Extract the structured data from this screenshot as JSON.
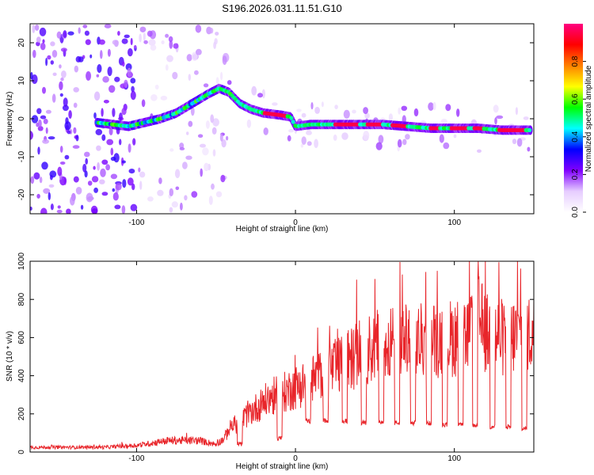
{
  "chart_data": [
    {
      "type": "heatmap",
      "title": "S196.2026.031.11.51.G10",
      "xlabel": "Height of straight line (km)",
      "ylabel": "Frequency (Hz)",
      "xlim": [
        -167,
        150
      ],
      "ylim": [
        -25,
        25
      ],
      "x_ticks": [
        -100,
        0,
        100
      ],
      "y_ticks": [
        -20,
        -10,
        0,
        10,
        20
      ],
      "colorbar": {
        "label": "Normalized spectral amplitude",
        "range": [
          0,
          1
        ],
        "ticks": [
          "0.0",
          "0.2",
          "0.4",
          "0.6",
          "0.8"
        ],
        "colors": [
          "#ffffff",
          "#e6ccff",
          "#8000ff",
          "#0000ff",
          "#00ffff",
          "#00ff00",
          "#ffff00",
          "#ff8000",
          "#ff0000",
          "#ff0080"
        ]
      },
      "ridge": {
        "x": [
          -125,
          -115,
          -105,
          -95,
          -85,
          -75,
          -65,
          -55,
          -48,
          -42,
          -35,
          -28,
          -20,
          -10,
          -3,
          0,
          10,
          25,
          40,
          55,
          70,
          85,
          100,
          115,
          130,
          148
        ],
        "y": [
          -1,
          -1.5,
          -2,
          -1,
          0,
          1.5,
          4,
          6.5,
          8,
          7,
          4,
          2.5,
          1.5,
          1,
          0.5,
          -2,
          -1.5,
          -1.5,
          -1.5,
          -1.5,
          -2,
          -2.5,
          -2.5,
          -2.5,
          -3,
          -3
        ],
        "peak_amplitude_regions_x": [
          [
            -20,
            -5
          ],
          [
            25,
            40
          ],
          [
            45,
            55
          ],
          [
            60,
            70
          ],
          [
            85,
            90
          ],
          [
            98,
            108
          ],
          [
            112,
            118
          ],
          [
            128,
            145
          ]
        ]
      }
    },
    {
      "type": "line",
      "xlabel": "Height of straight line (km)",
      "ylabel": "SNR (10 * v/v)",
      "xlim": [
        -167,
        150
      ],
      "ylim": [
        0,
        1000
      ],
      "x_ticks": [
        -100,
        0,
        100
      ],
      "y_ticks": [
        0,
        200,
        400,
        600,
        800,
        1000
      ],
      "series": [
        {
          "name": "SNR",
          "color": "#e8252a",
          "envelope": {
            "x": [
              -167,
              -140,
              -120,
              -100,
              -80,
              -60,
              -50,
              -45,
              -40,
              -35,
              -30,
              -25,
              -20,
              -15,
              -10,
              -5,
              0,
              5,
              10,
              20,
              30,
              40,
              50,
              60,
              70,
              80,
              90,
              100,
              110,
              115,
              120,
              130,
              140,
              150
            ],
            "y": [
              25,
              25,
              25,
              35,
              60,
              60,
              40,
              70,
              140,
              150,
              200,
              230,
              260,
              290,
              300,
              320,
              340,
              360,
              380,
              420,
              460,
              520,
              550,
              580,
              580,
              580,
              590,
              600,
              620,
              700,
              620,
              600,
              610,
              620
            ]
          },
          "dropouts": {
            "x": [
              -35,
              -10,
              8,
              19,
              31,
              43,
              54,
              64,
              74,
              84,
              94,
              104,
              113,
              124,
              134,
              144
            ],
            "floor": [
              30,
              60,
              150,
              150,
              150,
              140,
              140,
              140,
              140,
              140,
              130,
              130,
              130,
              120,
              120,
              110
            ]
          },
          "spike": {
            "x": 115,
            "y": 1000
          }
        }
      ]
    }
  ]
}
